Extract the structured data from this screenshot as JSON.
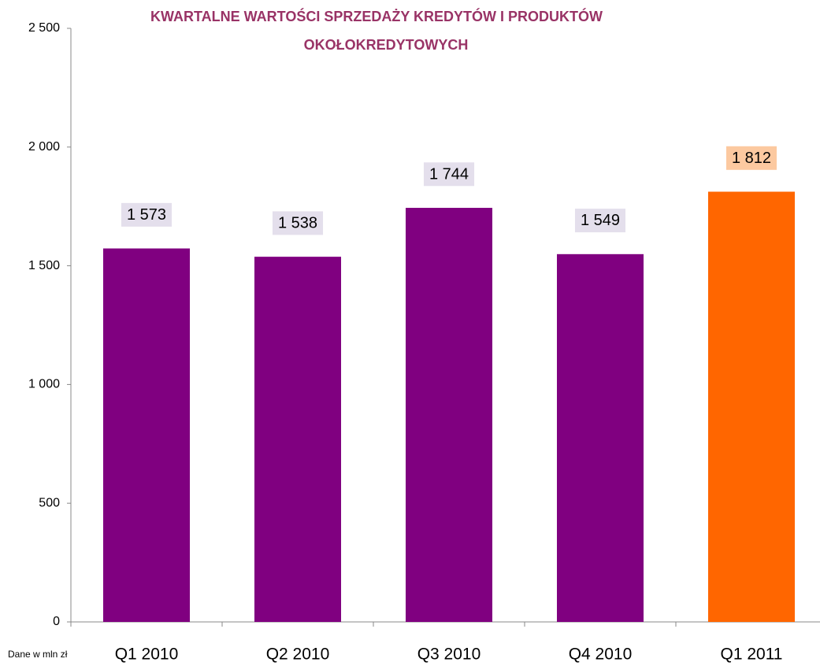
{
  "chart_data": {
    "type": "bar",
    "title": [
      "KWARTALNE WARTOŚCI SPRZEDAŻY KREDYTÓW I PRODUKTÓW",
      "OKOŁOKREDYTOWYCH"
    ],
    "note": "Dane w mln zł",
    "categories": [
      "Q1 2010",
      "Q2 2010",
      "Q3 2010",
      "Q4 2010",
      "Q1 2011"
    ],
    "values": [
      1573,
      1538,
      1744,
      1549,
      1812
    ],
    "value_labels": [
      "1 573",
      "1 538",
      "1 744",
      "1 549",
      "1 812"
    ],
    "colors": [
      "#800080",
      "#800080",
      "#800080",
      "#800080",
      "#ff6600"
    ],
    "label_background_colors": [
      "#e4dfec",
      "#e4dfec",
      "#e4dfec",
      "#e4dfec",
      "#fcc9a0"
    ],
    "ylim": [
      0,
      2500
    ],
    "yticks": [
      0,
      500,
      {
        "value": 1000,
        "label": "1 000"
      },
      {
        "value": 1500,
        "label": "1 500"
      },
      {
        "value": 2000,
        "label": "2 000"
      },
      {
        "value": 2500,
        "label": "2 500"
      }
    ],
    "grid": false
  }
}
